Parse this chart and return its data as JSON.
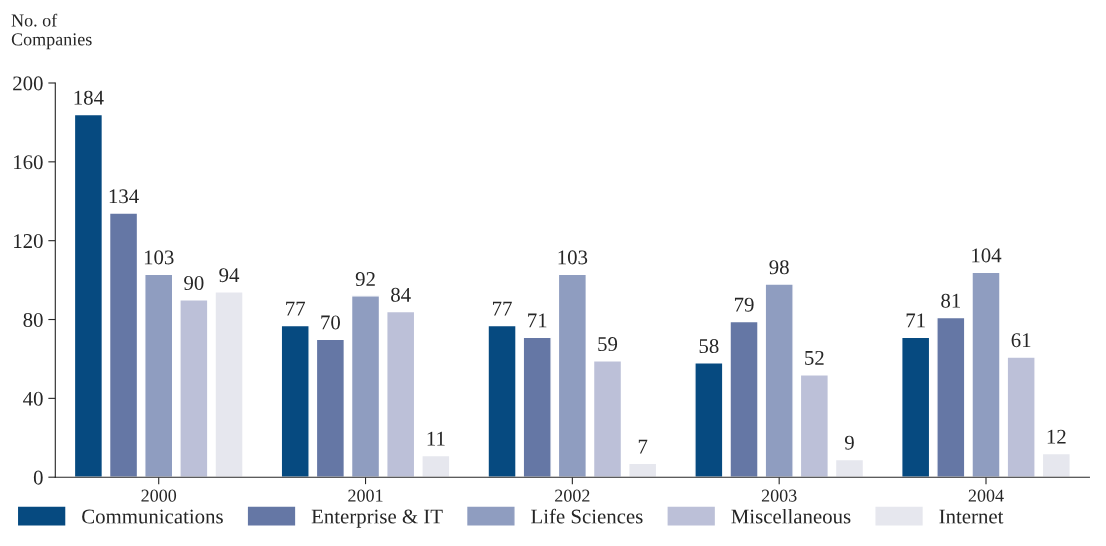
{
  "chart_data": {
    "type": "bar",
    "ylabel": "No. of\nCompanies",
    "categories": [
      "2000",
      "2001",
      "2002",
      "2003",
      "2004"
    ],
    "series": [
      {
        "name": "Communications",
        "color": "#064a80",
        "values": [
          184,
          77,
          77,
          58,
          71
        ]
      },
      {
        "name": "Enterprise & IT",
        "color": "#6577a5",
        "values": [
          134,
          70,
          71,
          79,
          81
        ]
      },
      {
        "name": "Life Sciences",
        "color": "#8f9dc0",
        "values": [
          103,
          92,
          103,
          98,
          104
        ]
      },
      {
        "name": "Miscellaneous",
        "color": "#bcc0d8",
        "values": [
          90,
          84,
          59,
          52,
          61
        ]
      },
      {
        "name": "Internet",
        "color": "#e6e7ee",
        "values": [
          94,
          11,
          7,
          9,
          12
        ]
      }
    ],
    "ylim": [
      0,
      200
    ],
    "yticks": [
      0,
      40,
      80,
      120,
      160,
      200
    ],
    "data_labels": true,
    "legend": "bottom",
    "grid": false
  }
}
